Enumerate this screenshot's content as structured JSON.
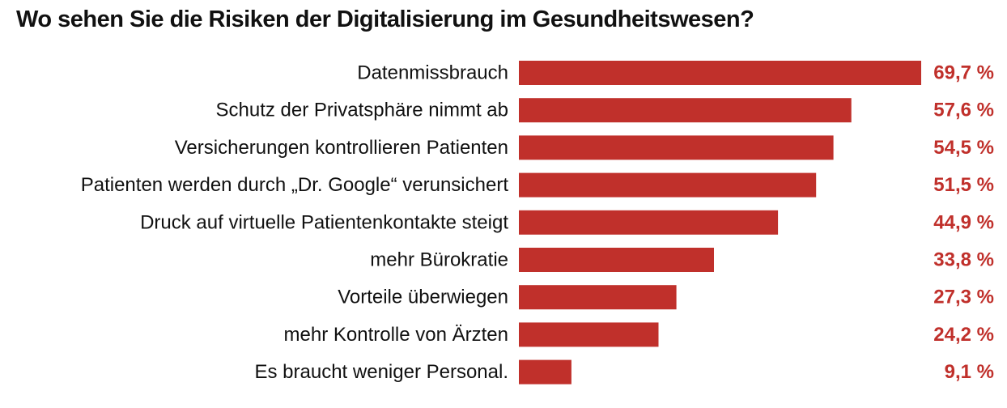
{
  "chart_data": {
    "type": "bar",
    "orientation": "horizontal",
    "title": "Wo sehen Sie die Risiken der Digitalisierung im Gesundheitswesen?",
    "categories": [
      "Datenmissbrauch",
      "Schutz der Privatsphäre nimmt ab",
      "Versicherungen kontrollieren Patienten",
      "Patienten werden durch „Dr. Google“ verunsichert",
      "Druck auf virtuelle Patientenkontakte steigt",
      "mehr Bürokratie",
      "Vorteile überwiegen",
      "mehr Kontrolle von Ärzten",
      "Es braucht weniger Personal."
    ],
    "values": [
      69.7,
      57.6,
      54.5,
      51.5,
      44.9,
      33.8,
      27.3,
      24.2,
      9.1
    ],
    "value_labels": [
      "69,7 %",
      "57,6 %",
      "54,5 %",
      "51,5 %",
      "44,9 %",
      "33,8 %",
      "27,3 %",
      "24,2 %",
      "9,1 %"
    ],
    "xlim": [
      0,
      100
    ],
    "grid": false,
    "legend": "none",
    "bar_color": "#c0302b",
    "value_color": "#c0302b"
  }
}
